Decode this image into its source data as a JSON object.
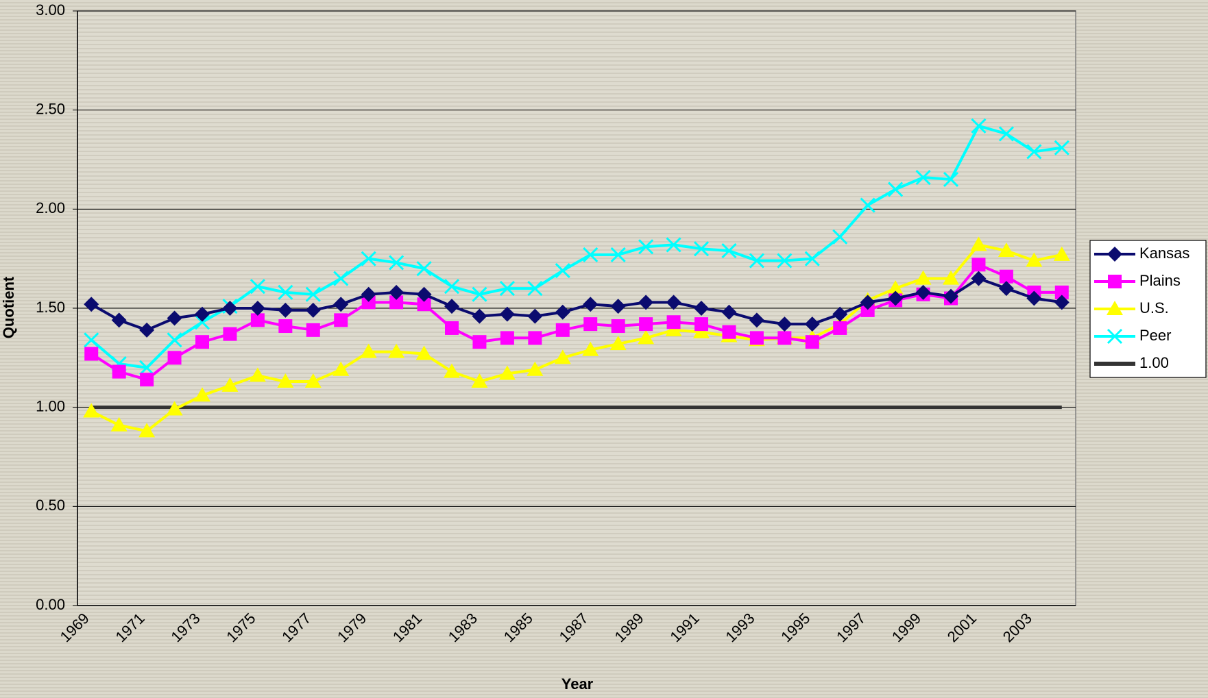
{
  "chart_data": {
    "type": "line",
    "x_label": "Year",
    "y_label": "Quotient",
    "categories": [
      "1969",
      null,
      "1971",
      null,
      "1973",
      null,
      "1975",
      null,
      "1977",
      null,
      "1979",
      null,
      "1981",
      null,
      "1983",
      null,
      "1985",
      null,
      "1987",
      null,
      "1989",
      null,
      "1991",
      null,
      "1993",
      null,
      "1995",
      null,
      "1997",
      null,
      "1999",
      null,
      "2001",
      null,
      "2003",
      null
    ],
    "series": [
      {
        "name": "Kansas",
        "color": "#0b0b6f",
        "marker": "diamond",
        "values": [
          1.52,
          1.44,
          1.39,
          1.45,
          1.47,
          1.5,
          1.5,
          1.49,
          1.49,
          1.52,
          1.57,
          1.58,
          1.57,
          1.51,
          1.46,
          1.47,
          1.46,
          1.48,
          1.52,
          1.51,
          1.53,
          1.53,
          1.5,
          1.48,
          1.44,
          1.42,
          1.42,
          1.47,
          1.53,
          1.55,
          1.58,
          1.56,
          1.65,
          1.6,
          1.55,
          1.53
        ]
      },
      {
        "name": "Plains",
        "color": "#ff00ff",
        "marker": "square",
        "values": [
          1.27,
          1.18,
          1.14,
          1.25,
          1.33,
          1.37,
          1.44,
          1.41,
          1.39,
          1.44,
          1.53,
          1.53,
          1.52,
          1.4,
          1.33,
          1.35,
          1.35,
          1.39,
          1.42,
          1.41,
          1.42,
          1.43,
          1.42,
          1.38,
          1.35,
          1.35,
          1.33,
          1.4,
          1.49,
          1.54,
          1.57,
          1.55,
          1.72,
          1.66,
          1.58,
          1.58
        ]
      },
      {
        "name": "U.S.",
        "color": "#ffff00",
        "marker": "triangle",
        "values": [
          0.98,
          0.91,
          0.88,
          0.99,
          1.06,
          1.11,
          1.16,
          1.13,
          1.13,
          1.19,
          1.28,
          1.28,
          1.27,
          1.18,
          1.13,
          1.17,
          1.19,
          1.25,
          1.29,
          1.32,
          1.35,
          1.39,
          1.38,
          1.36,
          1.34,
          1.35,
          1.35,
          1.42,
          1.54,
          1.6,
          1.65,
          1.65,
          1.82,
          1.79,
          1.74,
          1.77
        ]
      },
      {
        "name": "Peer",
        "color": "#00ffff",
        "marker": "x",
        "values": [
          1.34,
          1.22,
          1.2,
          1.34,
          1.43,
          1.51,
          1.61,
          1.58,
          1.57,
          1.65,
          1.75,
          1.73,
          1.7,
          1.61,
          1.57,
          1.6,
          1.6,
          1.69,
          1.77,
          1.77,
          1.81,
          1.82,
          1.8,
          1.79,
          1.74,
          1.74,
          1.75,
          1.86,
          2.02,
          2.1,
          2.16,
          2.15,
          2.42,
          2.38,
          2.29,
          2.31
        ]
      },
      {
        "name": "1.00",
        "color": "#333333",
        "marker": "none",
        "values": [
          1.0,
          1.0,
          1.0,
          1.0,
          1.0,
          1.0,
          1.0,
          1.0,
          1.0,
          1.0,
          1.0,
          1.0,
          1.0,
          1.0,
          1.0,
          1.0,
          1.0,
          1.0,
          1.0,
          1.0,
          1.0,
          1.0,
          1.0,
          1.0,
          1.0,
          1.0,
          1.0,
          1.0,
          1.0,
          1.0,
          1.0,
          1.0,
          1.0,
          1.0,
          1.0,
          1.0
        ]
      }
    ],
    "ylim": [
      0,
      3
    ],
    "yticks": [
      {
        "value": 0,
        "label": "0.00"
      },
      {
        "value": 0.5,
        "label": "0.50"
      },
      {
        "value": 1,
        "label": "1.00"
      },
      {
        "value": 1.5,
        "label": "1.50"
      },
      {
        "value": 2,
        "label": "2.00"
      },
      {
        "value": 2.5,
        "label": "2.50"
      },
      {
        "value": 3,
        "label": "3.00"
      }
    ],
    "grid": true,
    "legend": "right"
  }
}
